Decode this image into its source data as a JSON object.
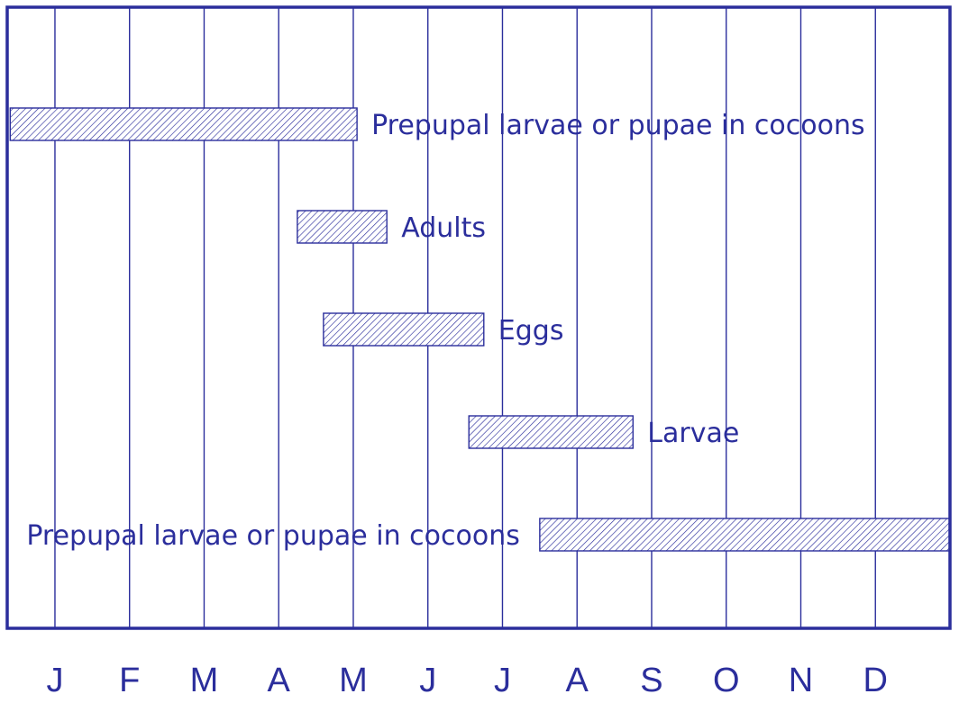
{
  "chart_data": {
    "type": "bar",
    "orientation": "horizontal",
    "title": "",
    "xlabel": "",
    "ylabel": "",
    "months": [
      "J",
      "F",
      "M",
      "A",
      "M",
      "J",
      "J",
      "A",
      "S",
      "O",
      "N",
      "D"
    ],
    "xlim": [
      0,
      12.6
    ],
    "grid": true,
    "colors": {
      "ink": "#2b2e9c",
      "hatch": "#2b2e9c",
      "background": "#ffffff"
    },
    "bars": [
      {
        "label": "Prepupal larvae or pupae in cocoons",
        "start": 0,
        "end": 4.65,
        "label_side": "right"
      },
      {
        "label": "Adults",
        "start": 3.85,
        "end": 5.05,
        "label_side": "right"
      },
      {
        "label": "Eggs",
        "start": 4.2,
        "end": 6.35,
        "label_side": "right"
      },
      {
        "label": "Larvae",
        "start": 6.15,
        "end": 8.35,
        "label_side": "right"
      },
      {
        "label": "Prepupal larvae or pupae in cocoons",
        "start": 7.1,
        "end": 12.6,
        "label_side": "left"
      }
    ]
  }
}
